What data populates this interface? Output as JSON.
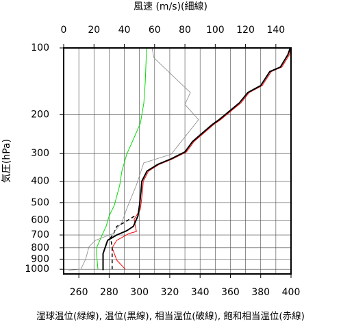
{
  "chart_data": {
    "type": "profile",
    "x2label": "風速 (m/s)(細線)",
    "xlabel": "湿球温位(緑線), 温位(黒線), 相当温位(破線), 飽和相当温位(赤線)",
    "ylabel": "気圧(hPa)",
    "xlim": [
      250,
      400
    ],
    "xticks": [
      260,
      280,
      300,
      320,
      340,
      360,
      380,
      400
    ],
    "x2lim": [
      0,
      150
    ],
    "x2ticks": [
      0,
      20,
      40,
      60,
      80,
      100,
      120,
      140
    ],
    "ylim": [
      1050,
      100
    ],
    "yticks": [
      100,
      200,
      300,
      400,
      500,
      600,
      700,
      800,
      900,
      1000
    ],
    "log": true,
    "grid": true,
    "series": [
      {
        "color": "#00dd00",
        "width": 1,
        "dash": false,
        "axis": "x",
        "pressure": [
          1000,
          850,
          800,
          690,
          640,
          574,
          515,
          416,
          360,
          302,
          271,
          219,
          177,
          143,
          100
        ],
        "values": [
          272.6,
          271.7,
          271.7,
          275.8,
          278,
          280,
          283.4,
          287,
          288.4,
          291.6,
          294.7,
          300.6,
          302.9,
          303.8,
          304.7
        ]
      },
      {
        "color": "#ff0000",
        "width": 1,
        "dash": false,
        "axis": "x",
        "pressure": [
          1000,
          910,
          800,
          740,
          690,
          675,
          595,
          535,
          446,
          401,
          360,
          336,
          317,
          295,
          265,
          244,
          222,
          211,
          199,
          177,
          159,
          148,
          128,
          122,
          107,
          100
        ],
        "values": [
          290.7,
          285,
          282,
          285,
          293,
          298,
          296.5,
          300.6,
          302,
          302.5,
          306,
          313,
          322,
          331,
          336,
          342,
          349,
          353.5,
          358,
          367,
          372.5,
          381,
          387,
          394,
          399,
          400
        ]
      },
      {
        "color": "#000000",
        "width": 2,
        "dash": false,
        "axis": "x",
        "pressure": [
          1010,
          850,
          740,
          700,
          670,
          640,
          574,
          515,
          446,
          401,
          360,
          336,
          317,
          295,
          265,
          244,
          222,
          211,
          199,
          177,
          159,
          148,
          128,
          122,
          107,
          100
        ],
        "values": [
          276,
          276,
          279,
          285,
          291.6,
          296,
          299,
          300,
          301,
          301.5,
          305,
          312,
          321,
          330,
          335,
          341,
          348,
          352.5,
          357,
          366,
          371.5,
          380,
          386,
          393,
          398,
          399.5
        ]
      },
      {
        "color": "#000000",
        "width": 1.5,
        "dash": true,
        "axis": "x",
        "pressure": [
          1000,
          800,
          720,
          690,
          640,
          615,
          574
        ],
        "values": [
          282,
          282,
          281,
          283,
          285,
          290,
          297
        ]
      },
      {
        "color": "#888888",
        "width": 0.8,
        "dash": false,
        "axis": "x2",
        "pressure": [
          1010,
          1000,
          900,
          790,
          740,
          690,
          615,
          533,
          416,
          331,
          302,
          211,
          180,
          159,
          111,
          100
        ],
        "values": [
          3.2,
          11.3,
          14.5,
          16.7,
          21,
          32.5,
          38.4,
          41.6,
          48,
          52.8,
          71,
          89,
          80,
          83.6,
          59.6,
          58.3
        ]
      }
    ]
  }
}
